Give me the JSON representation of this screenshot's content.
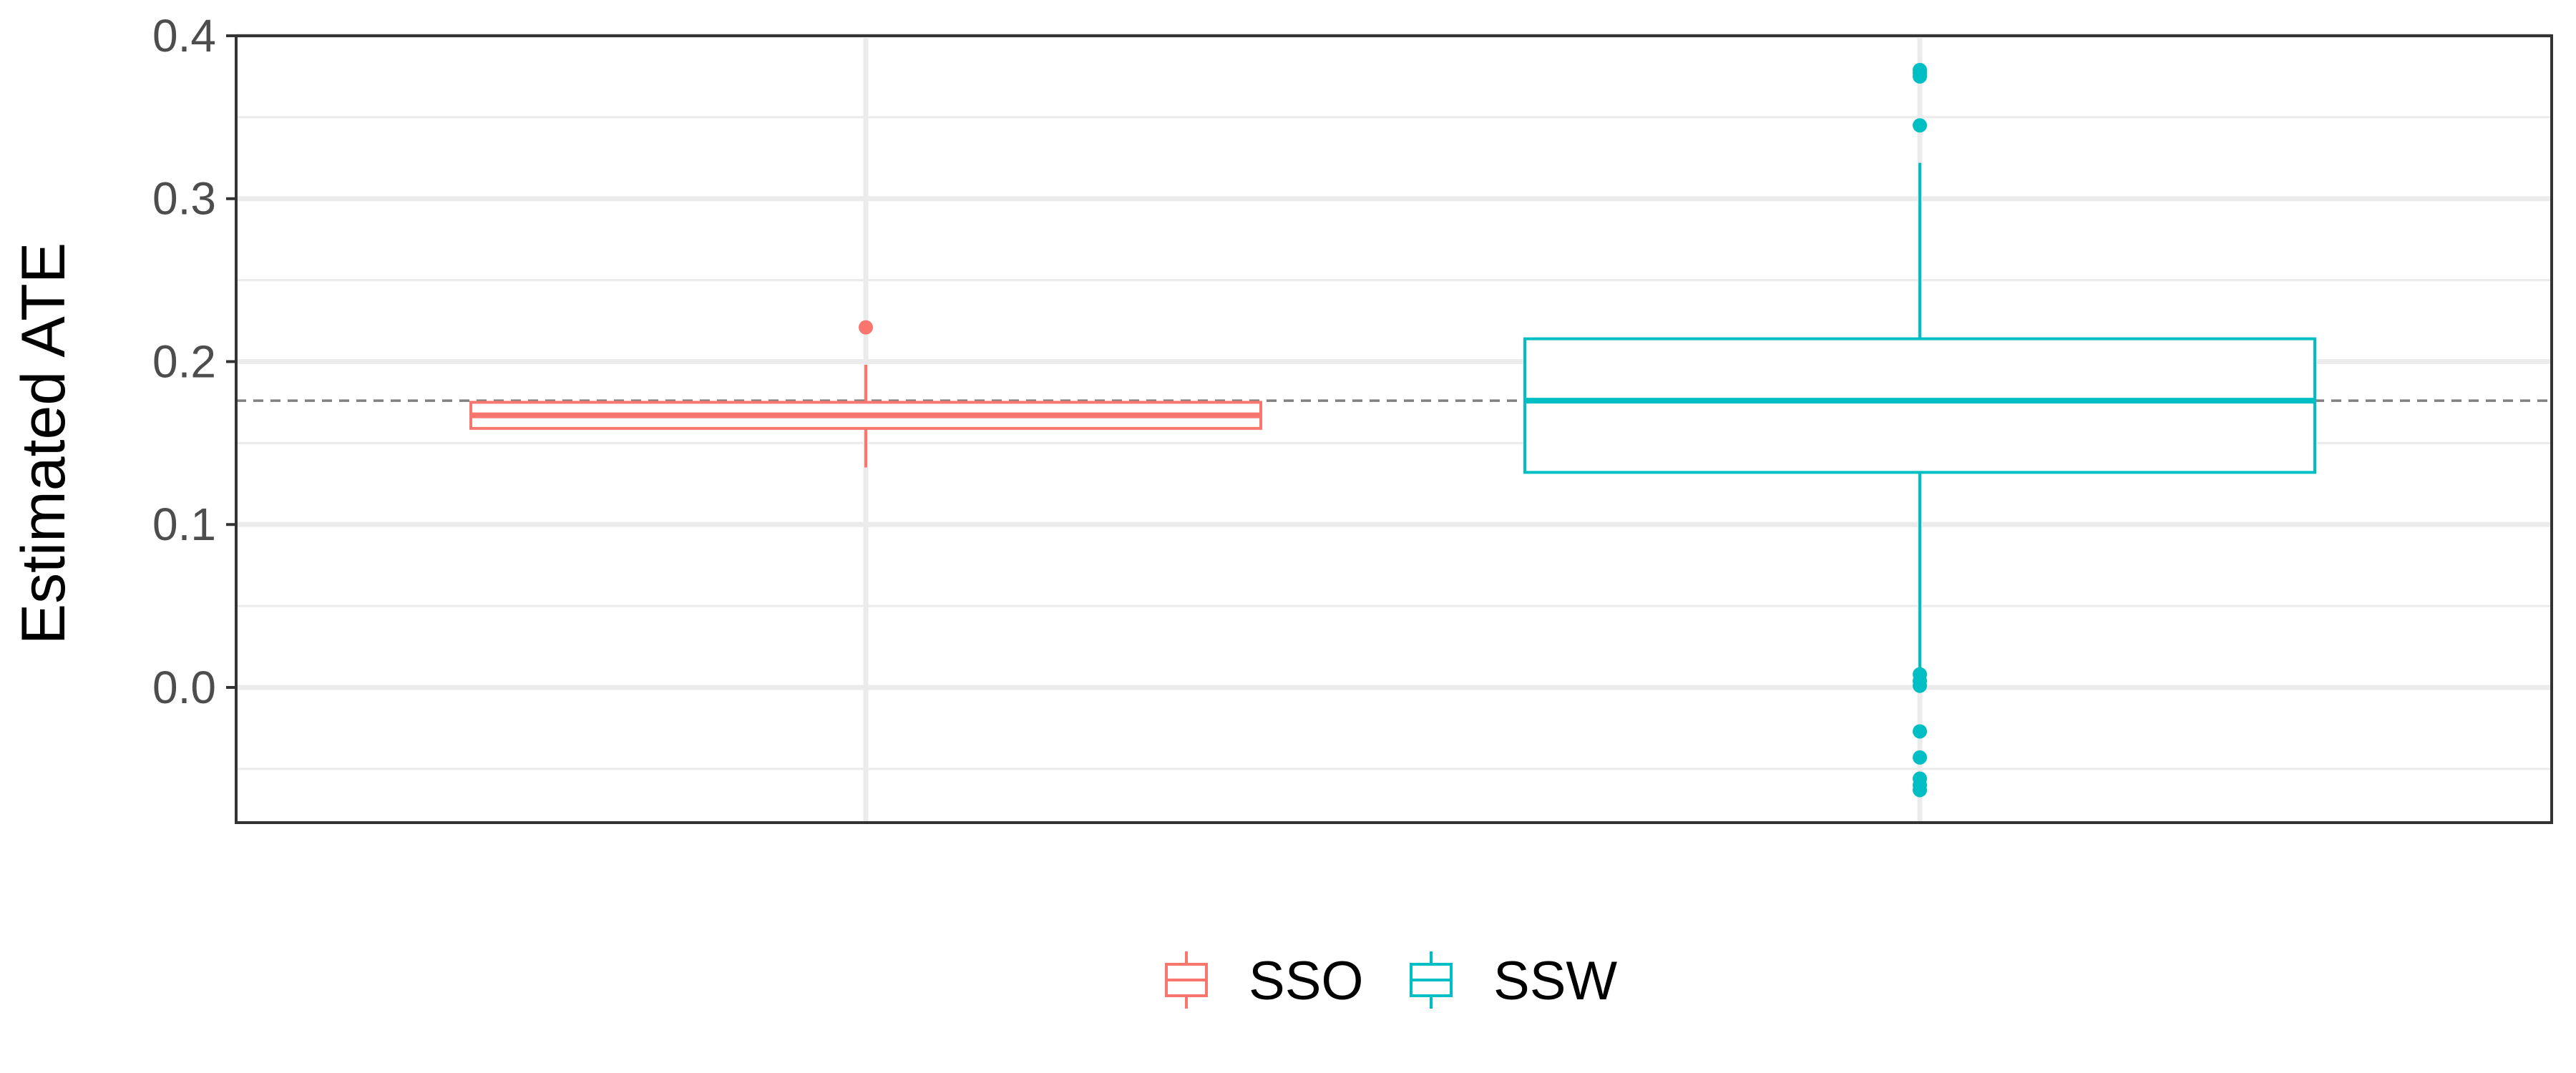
{
  "chart_data": {
    "type": "boxplot",
    "ylabel": "Estimated ATE",
    "xlabel": "",
    "ylim": [
      -0.083,
      0.4
    ],
    "y_ticks": [
      "0.0",
      "0.1",
      "0.2",
      "0.3",
      "0.4"
    ],
    "y_tick_values": [
      0.0,
      0.1,
      0.2,
      0.3,
      0.4
    ],
    "grid": true,
    "legend_position": "bottom",
    "reference_line": {
      "y": 0.176,
      "style": "dashed",
      "color": "#808080"
    },
    "series": [
      {
        "name": "SSO",
        "color": "#F8766D",
        "whisker_low": 0.135,
        "q1": 0.159,
        "median": 0.167,
        "q3": 0.175,
        "whisker_high": 0.198,
        "outliers": [
          0.221
        ]
      },
      {
        "name": "SSW",
        "color": "#00BFC4",
        "whisker_low": 0.01,
        "q1": 0.132,
        "median": 0.176,
        "q3": 0.214,
        "whisker_high": 0.322,
        "outliers": [
          0.379,
          0.377,
          0.375,
          0.345,
          0.008,
          0.004,
          0.001,
          -0.027,
          -0.043,
          -0.056,
          -0.06,
          -0.063
        ]
      }
    ]
  }
}
